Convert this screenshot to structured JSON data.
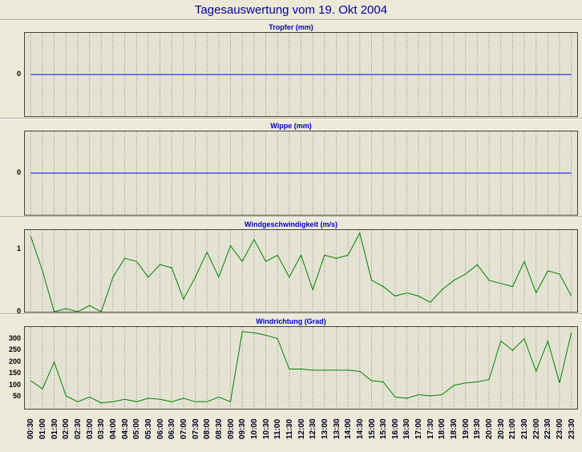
{
  "page_title": "Tagesauswertung vom 19. Okt 2004",
  "colors": {
    "background": "#ECE9D8",
    "plot_background": "#E4E3D3",
    "plot_border": "#45453d",
    "grid": "#8a8a7a",
    "title": "#000099",
    "chart_title": "#0000CC",
    "axis_text": "#000022",
    "line_blue": "#0000EE",
    "line_green": "#008000"
  },
  "x_labels": [
    "00:30",
    "01:00",
    "01:30",
    "02:00",
    "02:30",
    "03:00",
    "03:30",
    "04:00",
    "04:30",
    "05:00",
    "05:30",
    "06:00",
    "06:30",
    "07:00",
    "07:30",
    "08:00",
    "08:30",
    "09:00",
    "09:30",
    "10:00",
    "10:30",
    "11:00",
    "11:30",
    "12:00",
    "12:30",
    "13:00",
    "13:30",
    "14:00",
    "14:30",
    "15:00",
    "15:30",
    "16:00",
    "16:30",
    "17:00",
    "17:30",
    "18:00",
    "18:30",
    "19:00",
    "19:30",
    "20:00",
    "20:30",
    "21:00",
    "21:30",
    "22:00",
    "22:30",
    "23:00",
    "23:30"
  ],
  "chart_data": [
    {
      "type": "line",
      "title": "Tropfer (mm)",
      "ylabel": "mm",
      "line_color": "#0000EE",
      "yticks": [
        0
      ],
      "ylim": [
        -1,
        1
      ],
      "grid": "vertical-dashed",
      "values": [
        0,
        0,
        0,
        0,
        0,
        0,
        0,
        0,
        0,
        0,
        0,
        0,
        0,
        0,
        0,
        0,
        0,
        0,
        0,
        0,
        0,
        0,
        0,
        0,
        0,
        0,
        0,
        0,
        0,
        0,
        0,
        0,
        0,
        0,
        0,
        0,
        0,
        0,
        0,
        0,
        0,
        0,
        0,
        0,
        0,
        0,
        0
      ]
    },
    {
      "type": "line",
      "title": "Wippe (mm)",
      "ylabel": "mm",
      "line_color": "#0000EE",
      "yticks": [
        0
      ],
      "ylim": [
        -1,
        1
      ],
      "grid": "vertical-dashed",
      "values": [
        0,
        0,
        0,
        0,
        0,
        0,
        0,
        0,
        0,
        0,
        0,
        0,
        0,
        0,
        0,
        0,
        0,
        0,
        0,
        0,
        0,
        0,
        0,
        0,
        0,
        0,
        0,
        0,
        0,
        0,
        0,
        0,
        0,
        0,
        0,
        0,
        0,
        0,
        0,
        0,
        0,
        0,
        0,
        0,
        0,
        0,
        0
      ]
    },
    {
      "type": "line",
      "title": "Windgeschwindigkeit (m/s)",
      "ylabel": "m/s",
      "line_color": "#008000",
      "yticks": [
        0,
        1
      ],
      "ylim": [
        0,
        1.3
      ],
      "grid": "vertical-dashed",
      "values": [
        1.2,
        0.65,
        0,
        0.05,
        0,
        0.1,
        0,
        0.55,
        0.85,
        0.8,
        0.55,
        0.75,
        0.7,
        0.2,
        0.55,
        0.95,
        0.55,
        1.05,
        0.8,
        1.15,
        0.8,
        0.9,
        0.55,
        0.9,
        0.35,
        0.9,
        0.85,
        0.9,
        1.25,
        0.5,
        0.4,
        0.25,
        0.3,
        0.25,
        0.15,
        0.35,
        0.5,
        0.6,
        0.75,
        0.5,
        0.45,
        0.4,
        0.8,
        0.3,
        0.65,
        0.6,
        0.25
      ]
    },
    {
      "type": "line",
      "title": "Windrichtung (Grad)",
      "ylabel": "Grad",
      "line_color": "#008000",
      "yticks": [
        50,
        100,
        150,
        200,
        250,
        300
      ],
      "ylim": [
        0,
        350
      ],
      "grid": "vertical-dashed",
      "values": [
        120,
        85,
        200,
        55,
        30,
        50,
        25,
        30,
        40,
        30,
        45,
        40,
        30,
        45,
        30,
        30,
        50,
        30,
        330,
        325,
        315,
        300,
        170,
        170,
        165,
        165,
        165,
        165,
        160,
        120,
        115,
        50,
        45,
        60,
        55,
        60,
        100,
        110,
        115,
        125,
        290,
        250,
        300,
        160,
        290,
        110,
        325
      ]
    }
  ]
}
